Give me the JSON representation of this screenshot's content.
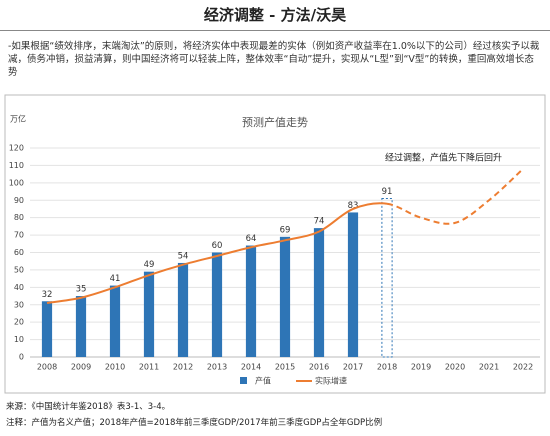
{
  "header": {
    "title": "经济调整 - 方法/沃昊"
  },
  "paragraph": "-如果根据“绩效排序，末端淘汰”的原则，将经济实体中表现最差的实体（例如资产收益率在1.0%以下的公司）经过核实予以裁减，债务冲销，损益清算，则中国经济将可以轻装上阵，整体效率“自动”提升，实现从“L型”到“V型”的转换，重回高效增长态势",
  "chart_data": {
    "type": "bar",
    "title": "预测产值走势",
    "y_label": "万亿",
    "categories": [
      "2008",
      "2009",
      "2010",
      "2011",
      "2012",
      "2013",
      "2014",
      "2015",
      "2016",
      "2017",
      "2018",
      "2019",
      "2020",
      "2021",
      "2022"
    ],
    "series": [
      {
        "name": "产值",
        "type": "bar",
        "color": "#2e75b6",
        "values": [
          32,
          35,
          41,
          49,
          54,
          60,
          64,
          69,
          74,
          83,
          91,
          null,
          null,
          null,
          null
        ],
        "styles": [
          "solid",
          "solid",
          "solid",
          "solid",
          "solid",
          "solid",
          "solid",
          "solid",
          "solid",
          "solid",
          "dashed",
          null,
          null,
          null,
          null
        ]
      },
      {
        "name": "实际增速",
        "type": "line",
        "color": "#ed7d31",
        "values": [
          31,
          34,
          40,
          47,
          53,
          58,
          63,
          67,
          72,
          85,
          88,
          80,
          77,
          90,
          108
        ],
        "styles": [
          "solid",
          "solid",
          "solid",
          "solid",
          "solid",
          "solid",
          "solid",
          "solid",
          "solid",
          "solid",
          "solid",
          "dashed",
          "dashed",
          "dashed",
          "dashed"
        ]
      }
    ],
    "ylim": [
      0,
      120
    ],
    "yticks": [
      0,
      10,
      20,
      30,
      40,
      50,
      60,
      70,
      80,
      90,
      100,
      110,
      120
    ],
    "grid": true,
    "annotation": "经过调整，产值先下降后回升",
    "legend": "bottom"
  },
  "footer": {
    "source": "来源：《中国统计年鉴2018》表3-1、3-4。",
    "note": "注释：产值为名义产值；2018年产值=2018年前三季度GDP/2017年前三季度GDP占全年GDP比例"
  }
}
